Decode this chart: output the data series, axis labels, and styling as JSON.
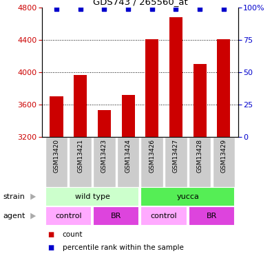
{
  "title": "GDS743 / 265560_at",
  "samples": [
    "GSM13420",
    "GSM13421",
    "GSM13423",
    "GSM13424",
    "GSM13426",
    "GSM13427",
    "GSM13428",
    "GSM13429"
  ],
  "counts": [
    3700,
    3970,
    3530,
    3720,
    4410,
    4680,
    4100,
    4410
  ],
  "ylim_left": [
    3200,
    4800
  ],
  "ylim_right": [
    0,
    100
  ],
  "yticks_left": [
    3200,
    3600,
    4000,
    4400,
    4800
  ],
  "yticks_right": [
    0,
    25,
    50,
    75,
    100
  ],
  "bar_color": "#cc0000",
  "dot_color": "#0000cc",
  "strain_labels": [
    "wild type",
    "yucca"
  ],
  "strain_colors": [
    "#ccffcc",
    "#55ee55"
  ],
  "agent_labels": [
    "control",
    "BR",
    "control",
    "BR"
  ],
  "agent_colors": [
    "#ffaaff",
    "#dd44dd",
    "#ffaaff",
    "#dd44dd"
  ],
  "legend_count_label": "count",
  "legend_pct_label": "percentile rank within the sample",
  "bar_color_red": "#cc0000",
  "dot_color_blue": "#0000cc",
  "sample_box_color": "#cccccc",
  "left_label_color": "#888888"
}
